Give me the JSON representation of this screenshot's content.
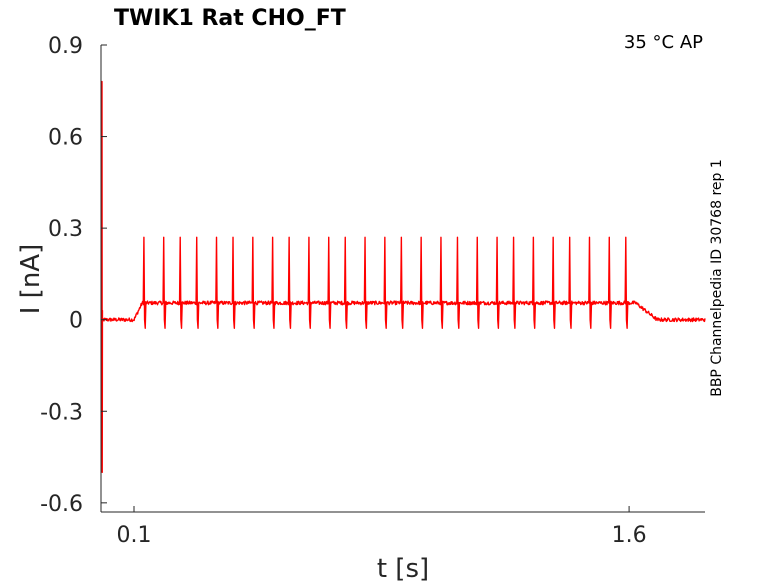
{
  "chart_data": {
    "type": "line",
    "title": "TWIK1  Rat  CHO_FT",
    "annotation": "35 °C  AP",
    "side_label": "BBP Channelpedia ID 30768 rep 1",
    "xlabel": "t [s]",
    "ylabel": "I [nA]",
    "xlim": [
      0,
      1.83
    ],
    "ylim": [
      -0.63,
      0.9
    ],
    "xticks": [
      {
        "value": 0.1,
        "label": "0.1"
      },
      {
        "value": 1.6,
        "label": "1.6"
      }
    ],
    "yticks": [
      {
        "value": 0.9,
        "label": "0.9"
      },
      {
        "value": 0.6,
        "label": "0.6"
      },
      {
        "value": 0.3,
        "label": "0.3"
      },
      {
        "value": 0,
        "label": "0"
      },
      {
        "value": -0.3,
        "label": "-0.3"
      },
      {
        "value": -0.6,
        "label": "-0.6"
      }
    ],
    "grid": false,
    "series": [
      {
        "color": "#ff0000",
        "baseline_before": 0.0,
        "baseline_during": 0.055,
        "baseline_after": 0.0,
        "stim_start": 0.1,
        "stim_end": 1.62,
        "artifact_time": 0.003,
        "artifact_max": 0.78,
        "artifact_min": -0.5,
        "spike_peak": 0.27,
        "spike_trough": 0.0,
        "spike_times": [
          0.13,
          0.19,
          0.24,
          0.29,
          0.35,
          0.4,
          0.46,
          0.52,
          0.57,
          0.63,
          0.69,
          0.74,
          0.8,
          0.86,
          0.91,
          0.97,
          1.03,
          1.08,
          1.14,
          1.2,
          1.25,
          1.31,
          1.37,
          1.42,
          1.48,
          1.54,
          1.59
        ]
      }
    ]
  }
}
